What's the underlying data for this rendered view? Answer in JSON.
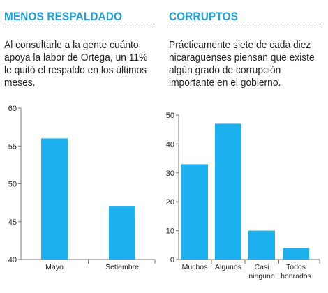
{
  "left_panel": {
    "title": "MENOS RESPALDADO",
    "description": "Al consultarle a la gente cuánto apoya la labor de Ortega, un 11% le quitó el respaldo en los últimos meses."
  },
  "right_panel": {
    "title": "CORRUPTOS",
    "description": "Prácticamente siete de cada diez nicaragüenses piensan que existe algún grado de corrupción importante en el gobierno."
  },
  "colors": {
    "accent": "#1a9fdc",
    "bar": "#1cb0ef",
    "axis": "#7a7a7a",
    "text": "#231f20"
  },
  "chart_data": [
    {
      "type": "bar",
      "title": "",
      "xlabel": "",
      "ylabel": "",
      "categories": [
        "Mayo",
        "Setiembre"
      ],
      "values": [
        56,
        47
      ],
      "ylim": [
        40,
        60
      ],
      "yticks": [
        40,
        45,
        50,
        55,
        60
      ],
      "grid": false
    },
    {
      "type": "bar",
      "title": "",
      "xlabel": "",
      "ylabel": "",
      "categories": [
        "Muchos",
        "Algunos",
        "Casi\nninguno",
        "Todos\nhonrados"
      ],
      "values": [
        33,
        47,
        10,
        4
      ],
      "ylim": [
        0,
        50
      ],
      "yticks": [
        0,
        10,
        20,
        30,
        40,
        50
      ],
      "grid": false
    }
  ]
}
